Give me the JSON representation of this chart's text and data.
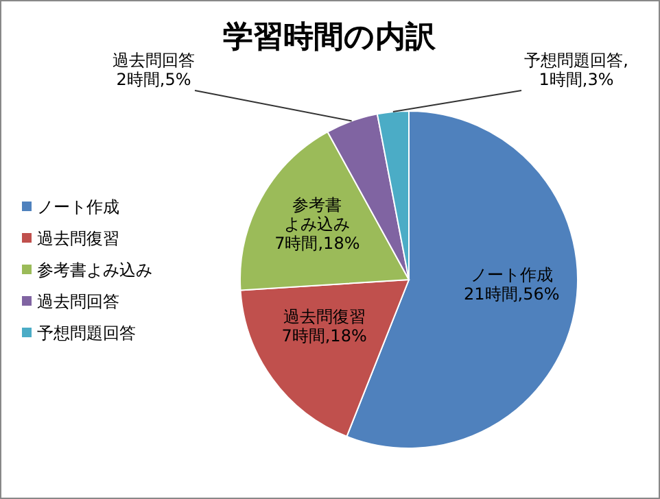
{
  "chart_data": {
    "type": "pie",
    "title": "学習時間の内訳",
    "categories": [
      "ノート作成",
      "過去問復習",
      "参考書よみ込み",
      "過去問回答",
      "予想問題回答"
    ],
    "values": [
      56,
      18,
      18,
      5,
      3
    ],
    "colors": [
      "#4f81bd",
      "#c0504d",
      "#9bbb59",
      "#8064a2",
      "#4bacc6"
    ],
    "value_labels": [
      "21時間,56%",
      "7時間,18%",
      "参考書よみ込み\n7時間,18%",
      "過去問回答\n2時間,5%",
      "予想問題回答,\n1時間,3%"
    ],
    "legend": "left"
  }
}
